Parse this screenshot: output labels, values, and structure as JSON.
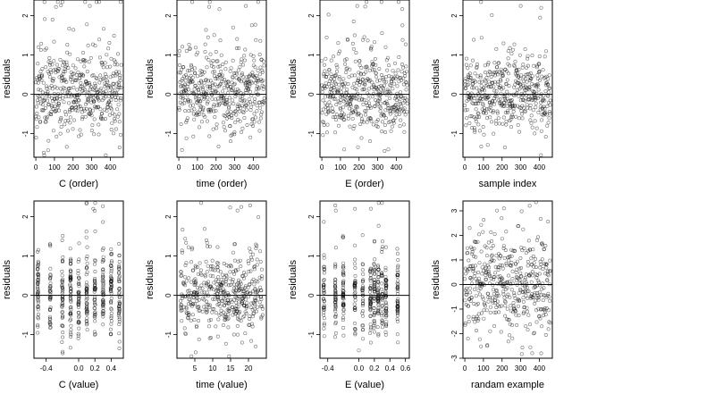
{
  "chart_data": [
    {
      "type": "scatter",
      "xlabel": "C (order)",
      "ylabel": "residuals",
      "xlim": [
        -10,
        470
      ],
      "ylim": [
        -1.6,
        2.4
      ],
      "xticks": [
        0,
        100,
        200,
        300,
        400
      ],
      "xtick_labels": [
        "0",
        "100",
        "200",
        "300",
        "400"
      ],
      "yticks": [
        -1,
        0,
        1,
        2
      ],
      "ytick_labels": [
        "-1",
        "0",
        "1",
        "2"
      ],
      "hline": 0,
      "x_kind": "index",
      "seed": 11,
      "highlights": [
        {
          "x": 90,
          "y": 1.9
        },
        {
          "x": 290,
          "y": 2.25
        },
        {
          "x": 450,
          "y": -1.35
        }
      ]
    },
    {
      "type": "scatter",
      "xlabel": "time (order)",
      "ylabel": "residuals",
      "xlim": [
        -10,
        470
      ],
      "ylim": [
        -1.6,
        2.4
      ],
      "xticks": [
        0,
        100,
        200,
        300,
        400
      ],
      "xtick_labels": [
        "0",
        "100",
        "200",
        "300",
        "400"
      ],
      "yticks": [
        -1,
        0,
        1,
        2
      ],
      "ytick_labels": [
        "-1",
        "0",
        "1",
        "2"
      ],
      "hline": 0,
      "x_kind": "index",
      "seed": 23,
      "highlights": [
        {
          "x": 360,
          "y": 2.25
        },
        {
          "x": 280,
          "y": -1.05
        }
      ]
    },
    {
      "type": "scatter",
      "xlabel": "E (order)",
      "ylabel": "residuals",
      "xlim": [
        -10,
        470
      ],
      "ylim": [
        -1.6,
        2.4
      ],
      "xticks": [
        0,
        100,
        200,
        300,
        400
      ],
      "xtick_labels": [
        "0",
        "100",
        "200",
        "300",
        "400"
      ],
      "yticks": [
        -1,
        0,
        1,
        2
      ],
      "ytick_labels": [
        "-1",
        "0",
        "1",
        "2"
      ],
      "hline": 0,
      "x_kind": "index",
      "seed": 37,
      "highlights": [
        {
          "x": 190,
          "y": 2.25
        },
        {
          "x": 120,
          "y": -1.4
        }
      ]
    },
    {
      "type": "scatter",
      "xlabel": "sample index",
      "ylabel": "residuals",
      "xlim": [
        -10,
        470
      ],
      "ylim": [
        -1.6,
        2.4
      ],
      "xticks": [
        0,
        100,
        200,
        300,
        400
      ],
      "xtick_labels": [
        "0",
        "100",
        "200",
        "300",
        "400"
      ],
      "yticks": [
        -1,
        0,
        1,
        2
      ],
      "ytick_labels": [
        "-1",
        "0",
        "1",
        "2"
      ],
      "hline": 0,
      "x_kind": "index",
      "seed": 41,
      "highlights": [
        {
          "x": 300,
          "y": 2.25
        },
        {
          "x": 215,
          "y": -1.35
        }
      ]
    },
    {
      "type": "scatter",
      "xlabel": "C (value)",
      "ylabel": "residuals",
      "xlim": [
        -0.55,
        0.55
      ],
      "ylim": [
        -1.6,
        2.4
      ],
      "xticks": [
        -0.4,
        0.0,
        0.2,
        0.4
      ],
      "xtick_labels": [
        "-0.4",
        "0.0",
        "0.2",
        "0.4"
      ],
      "yticks": [
        -1,
        0,
        1,
        2
      ],
      "ytick_labels": [
        "-1",
        "0",
        "1",
        "2"
      ],
      "hline": 0,
      "x_kind": "discrete",
      "x_levels": [
        -0.5,
        -0.35,
        -0.2,
        -0.1,
        0.0,
        0.1,
        0.2,
        0.3,
        0.4,
        0.5
      ],
      "seed": 53,
      "highlights": [
        {
          "x": 0.18,
          "y": 2.2
        },
        {
          "x": 0.5,
          "y": -1.35
        }
      ]
    },
    {
      "type": "scatter",
      "xlabel": "time (value)",
      "ylabel": "residuals",
      "xlim": [
        0,
        25
      ],
      "ylim": [
        -1.6,
        2.4
      ],
      "xticks": [
        5,
        10,
        15,
        20
      ],
      "xtick_labels": [
        "5",
        "10",
        "15",
        "20"
      ],
      "yticks": [
        -1,
        0,
        1,
        2
      ],
      "ytick_labels": [
        "-1",
        "0",
        "1",
        "2"
      ],
      "hline": 0,
      "x_kind": "uniform",
      "seed": 67,
      "highlights": [
        {
          "x": 18,
          "y": 2.25
        },
        {
          "x": 22,
          "y": -1.3
        }
      ]
    },
    {
      "type": "scatter",
      "xlabel": "E (value)",
      "ylabel": "residuals",
      "xlim": [
        -0.5,
        0.65
      ],
      "ylim": [
        -1.6,
        2.4
      ],
      "xticks": [
        -0.4,
        0.0,
        0.2,
        0.4,
        0.6
      ],
      "xtick_labels": [
        "-0.4",
        "0.0",
        "0.2",
        "0.4",
        "0.6"
      ],
      "yticks": [
        -1,
        0,
        1,
        2
      ],
      "ytick_labels": [
        "-1",
        "0",
        "1",
        "2"
      ],
      "hline": 0,
      "x_kind": "discrete",
      "x_levels": [
        -0.45,
        -0.3,
        -0.2,
        -0.05,
        0.05,
        0.15,
        0.2,
        0.25,
        0.3,
        0.35,
        0.5
      ],
      "seed": 79,
      "highlights": [
        {
          "x": -0.05,
          "y": 2.2
        },
        {
          "x": 0.0,
          "y": -1.4
        }
      ]
    },
    {
      "type": "scatter",
      "xlabel": "randam example",
      "ylabel": "residuals",
      "xlim": [
        -10,
        470
      ],
      "ylim": [
        -3.0,
        3.4
      ],
      "xticks": [
        0,
        100,
        200,
        300,
        400
      ],
      "xtick_labels": [
        "0",
        "100",
        "200",
        "300",
        "400"
      ],
      "yticks": [
        -3,
        -2,
        -1,
        0,
        1,
        2,
        3
      ],
      "ytick_labels": [
        "-3",
        "-2",
        "-1",
        "0",
        "1",
        "2",
        "3"
      ],
      "hline": 0,
      "x_kind": "index_normal",
      "seed": 97,
      "highlights": [
        {
          "x": 210,
          "y": 3.1
        },
        {
          "x": 410,
          "y": -2.8
        }
      ]
    }
  ]
}
